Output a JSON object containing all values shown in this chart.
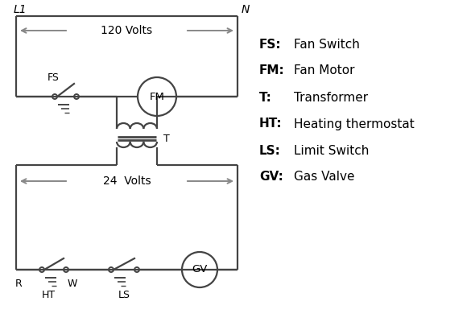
{
  "background_color": "#ffffff",
  "line_color": "#444444",
  "arrow_color": "#888888",
  "legend": [
    [
      "FS:",
      "Fan Switch"
    ],
    [
      "FM:",
      "Fan Motor"
    ],
    [
      "T:",
      "Transformer"
    ],
    [
      "HT:",
      "Heating thermostat"
    ],
    [
      "LS:",
      "Limit Switch"
    ],
    [
      "GV:",
      "Gas Valve"
    ]
  ],
  "L1_label": "L1",
  "N_label": "N",
  "volts_120": "120 Volts",
  "volts_24": "24  Volts",
  "T_label": "T",
  "FS_label": "FS",
  "FM_label": "FM",
  "R_label": "R",
  "W_label": "W",
  "HT_label": "HT",
  "LS_label": "LS",
  "GV_label": "GV"
}
